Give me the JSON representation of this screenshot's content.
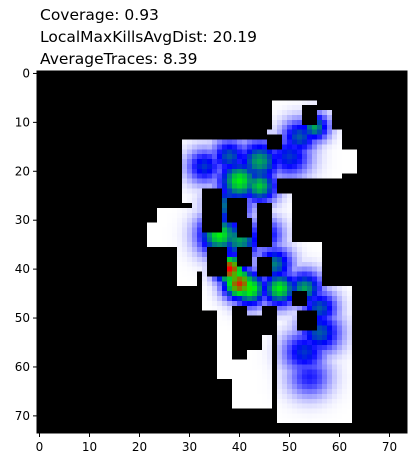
{
  "chart_data": {
    "type": "heatmap",
    "title_lines": [
      "Coverage: 0.93",
      "LocalMaxKillsAvgDist: 20.19",
      "AverageTraces: 8.39"
    ],
    "xlabel": "",
    "ylabel": "",
    "xlim": [
      -0.5,
      73.5
    ],
    "ylim": [
      73.5,
      -0.5
    ],
    "x_ticks": [
      0,
      10,
      20,
      30,
      40,
      50,
      60,
      70
    ],
    "y_ticks": [
      0,
      10,
      20,
      30,
      40,
      50,
      60,
      70
    ],
    "grid": false,
    "grid_size": [
      74,
      74
    ],
    "background_color": "#000000",
    "walkable_color": "#ffffff",
    "colormap": [
      "#ffffff",
      "#0000ff",
      "#00ff00",
      "#ff0000"
    ],
    "walkable_regions": [
      {
        "x": [
          47,
          55
        ],
        "y": [
          6,
          12
        ]
      },
      {
        "x": [
          53,
          58
        ],
        "y": [
          8,
          13
        ]
      },
      {
        "x": [
          46,
          60
        ],
        "y": [
          12,
          21
        ]
      },
      {
        "x": [
          55,
          63
        ],
        "y": [
          16,
          20
        ]
      },
      {
        "x": [
          29,
          49
        ],
        "y": [
          14,
          26
        ]
      },
      {
        "x": [
          36,
          50
        ],
        "y": [
          20,
          33
        ]
      },
      {
        "x": [
          31,
          36
        ],
        "y": [
          20,
          40
        ]
      },
      {
        "x": [
          22,
          32
        ],
        "y": [
          31,
          35
        ]
      },
      {
        "x": [
          24,
          31
        ],
        "y": [
          28,
          31
        ]
      },
      {
        "x": [
          28,
          31
        ],
        "y": [
          35,
          43
        ]
      },
      {
        "x": [
          33,
          44
        ],
        "y": [
          30,
          48
        ]
      },
      {
        "x": [
          44,
          50
        ],
        "y": [
          33,
          46
        ]
      },
      {
        "x": [
          42,
          56
        ],
        "y": [
          37,
          52
        ]
      },
      {
        "x": [
          49,
          56
        ],
        "y": [
          35,
          40
        ]
      },
      {
        "x": [
          36,
          46
        ],
        "y": [
          46,
          62
        ]
      },
      {
        "x": [
          39,
          46
        ],
        "y": [
          62,
          68
        ]
      },
      {
        "x": [
          48,
          62
        ],
        "y": [
          44,
          71
        ]
      },
      {
        "x": [
          54,
          62
        ],
        "y": [
          58,
          63
        ]
      }
    ],
    "wall_cells": [
      {
        "x": [
          53,
          55
        ],
        "y": [
          7,
          10
        ]
      },
      {
        "x": [
          46,
          48
        ],
        "y": [
          13,
          15
        ]
      },
      {
        "x": [
          48,
          53
        ],
        "y": [
          22,
          24
        ]
      },
      {
        "x": [
          55,
          58
        ],
        "y": [
          22,
          24
        ]
      },
      {
        "x": [
          33,
          36
        ],
        "y": [
          24,
          32
        ]
      },
      {
        "x": [
          38,
          41
        ],
        "y": [
          26,
          30
        ]
      },
      {
        "x": [
          40,
          42
        ],
        "y": [
          30,
          33
        ]
      },
      {
        "x": [
          44,
          46
        ],
        "y": [
          27,
          35
        ]
      },
      {
        "x": [
          34,
          37
        ],
        "y": [
          36,
          41
        ]
      },
      {
        "x": [
          40,
          42
        ],
        "y": [
          36,
          39
        ]
      },
      {
        "x": [
          44,
          46
        ],
        "y": [
          38,
          41
        ]
      },
      {
        "x": [
          39,
          41
        ],
        "y": [
          48,
          58
        ]
      },
      {
        "x": [
          42,
          44
        ],
        "y": [
          50,
          56
        ]
      },
      {
        "x": [
          45,
          47
        ],
        "y": [
          48,
          53
        ]
      },
      {
        "x": [
          51,
          53
        ],
        "y": [
          45,
          47
        ]
      },
      {
        "x": [
          52,
          55
        ],
        "y": [
          49,
          52
        ]
      }
    ],
    "heat_points": [
      {
        "x": 52,
        "y": 13,
        "sigma": 2.5,
        "v": 0.45
      },
      {
        "x": 55,
        "y": 11,
        "sigma": 2.0,
        "v": 0.55
      },
      {
        "x": 50,
        "y": 17,
        "sigma": 3.0,
        "v": 0.4
      },
      {
        "x": 44,
        "y": 18,
        "sigma": 3.0,
        "v": 0.55
      },
      {
        "x": 38,
        "y": 17,
        "sigma": 2.5,
        "v": 0.45
      },
      {
        "x": 33,
        "y": 19,
        "sigma": 2.5,
        "v": 0.4
      },
      {
        "x": 40,
        "y": 22,
        "sigma": 3.0,
        "v": 0.65
      },
      {
        "x": 44,
        "y": 23,
        "sigma": 2.5,
        "v": 0.6
      },
      {
        "x": 38,
        "y": 27,
        "sigma": 3.0,
        "v": 0.5
      },
      {
        "x": 36,
        "y": 33,
        "sigma": 3.0,
        "v": 0.65
      },
      {
        "x": 40,
        "y": 34,
        "sigma": 3.0,
        "v": 0.55
      },
      {
        "x": 45,
        "y": 33,
        "sigma": 2.5,
        "v": 0.4
      },
      {
        "x": 38,
        "y": 40,
        "sigma": 2.0,
        "v": 1.0
      },
      {
        "x": 40,
        "y": 43,
        "sigma": 2.2,
        "v": 0.95
      },
      {
        "x": 42,
        "y": 44,
        "sigma": 2.5,
        "v": 0.7
      },
      {
        "x": 47,
        "y": 39,
        "sigma": 2.5,
        "v": 0.5
      },
      {
        "x": 48,
        "y": 44,
        "sigma": 2.5,
        "v": 0.65
      },
      {
        "x": 53,
        "y": 44,
        "sigma": 2.5,
        "v": 0.55
      },
      {
        "x": 56,
        "y": 48,
        "sigma": 2.5,
        "v": 0.45
      },
      {
        "x": 56,
        "y": 53,
        "sigma": 3.0,
        "v": 0.45
      },
      {
        "x": 53,
        "y": 57,
        "sigma": 3.0,
        "v": 0.4
      },
      {
        "x": 54,
        "y": 62,
        "sigma": 3.0,
        "v": 0.3
      }
    ]
  }
}
